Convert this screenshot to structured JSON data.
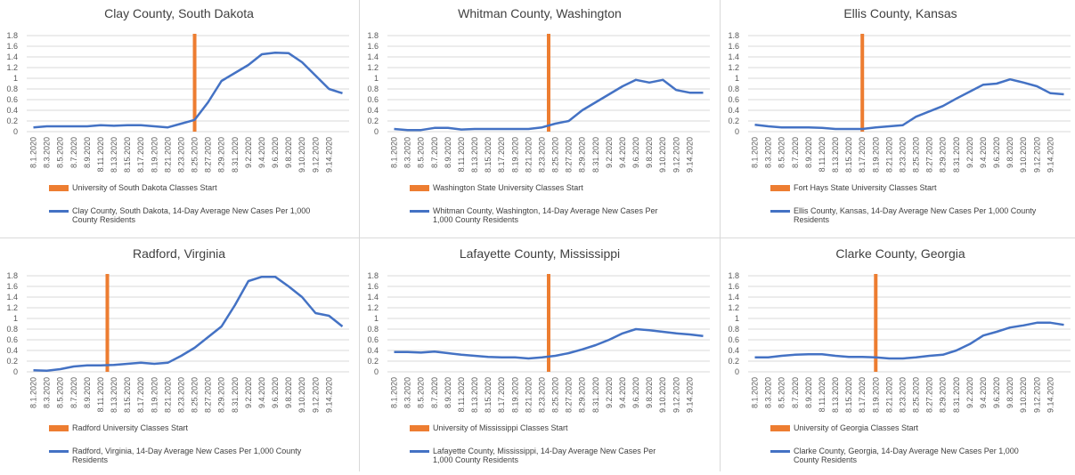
{
  "chart_data": [
    {
      "type": "line",
      "title": "Clay County, South Dakota",
      "categories": [
        "8.1.2020",
        "8.3.2020",
        "8.5.2020",
        "8.7.2020",
        "8.9.2020",
        "8.11.2020",
        "8.13.2020",
        "8.15.2020",
        "8.17.2020",
        "8.19.2020",
        "8.21.2020",
        "8.23.2020",
        "8.25.2020",
        "8.27.2020",
        "8.29.2020",
        "8.31.2020",
        "9.2.2020",
        "9.4.2020",
        "9.6.2020",
        "9.8.2020",
        "9.10.2020",
        "9.12.2020",
        "9.14.2020",
        null
      ],
      "series": [
        {
          "name": "Clay County, South Dakota, 14-Day Average New Cases Per 1,000 County Residents",
          "color": "#4472c4",
          "values": [
            0.08,
            0.1,
            0.1,
            0.1,
            0.1,
            0.12,
            0.11,
            0.12,
            0.12,
            0.1,
            0.08,
            0.15,
            0.22,
            0.55,
            0.95,
            1.1,
            1.25,
            1.45,
            1.48,
            1.47,
            1.3,
            1.05,
            0.8,
            0.72
          ]
        }
      ],
      "event": {
        "name": "University of South Dakota Classes Start",
        "color": "#ed7d31",
        "x": 12
      },
      "ylim": [
        0,
        1.8
      ],
      "yticks": [
        0,
        0.2,
        0.4,
        0.6,
        0.8,
        1,
        1.2,
        1.4,
        1.6,
        1.8
      ],
      "grid": true
    },
    {
      "type": "line",
      "title": "Whitman County, Washington",
      "categories": [
        "8.1.2020",
        "8.3.2020",
        "8.5.2020",
        "8.7.2020",
        "8.9.2020",
        "8.11.2020",
        "8.13.2020",
        "8.15.2020",
        "8.17.2020",
        "8.19.2020",
        "8.21.2020",
        "8.23.2020",
        "8.25.2020",
        "8.27.2020",
        "8.29.2020",
        "8.31.2020",
        "9.2.2020",
        "9.4.2020",
        "9.6.2020",
        "9.8.2020",
        "9.10.2020",
        "9.12.2020",
        "9.14.2020",
        null
      ],
      "series": [
        {
          "name": "Whitman County, Washington, 14-Day Average New Cases Per 1,000 County Residents",
          "color": "#4472c4",
          "values": [
            0.05,
            0.03,
            0.03,
            0.07,
            0.07,
            0.04,
            0.05,
            0.05,
            0.05,
            0.05,
            0.05,
            0.08,
            0.15,
            0.2,
            0.4,
            0.55,
            0.7,
            0.85,
            0.97,
            0.92,
            0.97,
            0.78,
            0.73,
            0.73
          ]
        }
      ],
      "event": {
        "name": "Washington State University Classes Start",
        "color": "#ed7d31",
        "x": 11.5
      },
      "ylim": [
        0,
        1.8
      ],
      "yticks": [
        0,
        0.2,
        0.4,
        0.6,
        0.8,
        1,
        1.2,
        1.4,
        1.6,
        1.8
      ],
      "grid": true
    },
    {
      "type": "line",
      "title": "Ellis County, Kansas",
      "categories": [
        "8.1.2020",
        "8.3.2020",
        "8.5.2020",
        "8.7.2020",
        "8.9.2020",
        "8.11.2020",
        "8.13.2020",
        "8.15.2020",
        "8.17.2020",
        "8.19.2020",
        "8.21.2020",
        "8.23.2020",
        "8.25.2020",
        "8.27.2020",
        "8.29.2020",
        "8.31.2020",
        "9.2.2020",
        "9.4.2020",
        "9.6.2020",
        "9.8.2020",
        "9.10.2020",
        "9.12.2020",
        "9.14.2020",
        null
      ],
      "series": [
        {
          "name": "Ellis County, Kansas, 14-Day Average New Cases Per 1,000 County Residents",
          "color": "#4472c4",
          "values": [
            0.13,
            0.1,
            0.08,
            0.08,
            0.08,
            0.07,
            0.05,
            0.05,
            0.05,
            0.08,
            0.1,
            0.12,
            0.28,
            0.38,
            0.48,
            0.62,
            0.75,
            0.88,
            0.9,
            0.98,
            0.92,
            0.85,
            0.72,
            0.7
          ]
        }
      ],
      "event": {
        "name": "Fort Hays State University Classes Start",
        "color": "#ed7d31",
        "x": 8
      },
      "ylim": [
        0,
        1.8
      ],
      "yticks": [
        0,
        0.2,
        0.4,
        0.6,
        0.8,
        1,
        1.2,
        1.4,
        1.6,
        1.8
      ],
      "grid": true
    },
    {
      "type": "line",
      "title": "Radford, Virginia",
      "categories": [
        "8.1.2020",
        "8.3.2020",
        "8.5.2020",
        "8.7.2020",
        "8.9.2020",
        "8.11.2020",
        "8.13.2020",
        "8.15.2020",
        "8.17.2020",
        "8.19.2020",
        "8.21.2020",
        "8.23.2020",
        "8.25.2020",
        "8.27.2020",
        "8.29.2020",
        "8.31.2020",
        "9.2.2020",
        "9.4.2020",
        "9.6.2020",
        "9.8.2020",
        "9.10.2020",
        "9.12.2020",
        "9.14.2020",
        null
      ],
      "series": [
        {
          "name": "Radford, Virginia, 14-Day Average New Cases Per 1,000 County Residents",
          "color": "#4472c4",
          "values": [
            0.03,
            0.02,
            0.05,
            0.1,
            0.12,
            0.12,
            0.13,
            0.15,
            0.17,
            0.15,
            0.17,
            0.3,
            0.45,
            0.65,
            0.85,
            1.25,
            1.7,
            1.78,
            1.78,
            1.6,
            1.4,
            1.1,
            1.05,
            0.85
          ]
        }
      ],
      "event": {
        "name": "Radford University Classes Start",
        "color": "#ed7d31",
        "x": 5.5
      },
      "ylim": [
        0,
        1.8
      ],
      "yticks": [
        0,
        0.2,
        0.4,
        0.6,
        0.8,
        1,
        1.2,
        1.4,
        1.6,
        1.8
      ],
      "grid": true
    },
    {
      "type": "line",
      "title": "Lafayette County, Mississippi",
      "categories": [
        "8.1.2020",
        "8.3.2020",
        "8.5.2020",
        "8.7.2020",
        "8.9.2020",
        "8.11.2020",
        "8.13.2020",
        "8.15.2020",
        "8.17.2020",
        "8.19.2020",
        "8.21.2020",
        "8.23.2020",
        "8.25.2020",
        "8.27.2020",
        "8.29.2020",
        "8.31.2020",
        "9.2.2020",
        "9.4.2020",
        "9.6.2020",
        "9.8.2020",
        "9.10.2020",
        "9.12.2020",
        "9.14.2020",
        null
      ],
      "series": [
        {
          "name": "Lafayette County, Mississippi, 14-Day Average New Cases Per 1,000 County Residents",
          "color": "#4472c4",
          "values": [
            0.37,
            0.37,
            0.36,
            0.38,
            0.35,
            0.32,
            0.3,
            0.28,
            0.27,
            0.27,
            0.25,
            0.27,
            0.3,
            0.35,
            0.42,
            0.5,
            0.6,
            0.72,
            0.8,
            0.78,
            0.75,
            0.72,
            0.7,
            0.67
          ]
        }
      ],
      "event": {
        "name": "University of Mississippi Classes Start",
        "color": "#ed7d31",
        "x": 11.5
      },
      "ylim": [
        0,
        1.8
      ],
      "yticks": [
        0,
        0.2,
        0.4,
        0.6,
        0.8,
        1,
        1.2,
        1.4,
        1.6,
        1.8
      ],
      "grid": true
    },
    {
      "type": "line",
      "title": "Clarke County, Georgia",
      "categories": [
        "8.1.2020",
        "8.3.2020",
        "8.5.2020",
        "8.7.2020",
        "8.9.2020",
        "8.11.2020",
        "8.13.2020",
        "8.15.2020",
        "8.17.2020",
        "8.19.2020",
        "8.21.2020",
        "8.23.2020",
        "8.25.2020",
        "8.27.2020",
        "8.29.2020",
        "8.31.2020",
        "9.2.2020",
        "9.4.2020",
        "9.6.2020",
        "9.8.2020",
        "9.10.2020",
        "9.12.2020",
        "9.14.2020",
        null
      ],
      "series": [
        {
          "name": "Clarke County, Georgia, 14-Day Average New Cases Per 1,000 County Residents",
          "color": "#4472c4",
          "values": [
            0.27,
            0.27,
            0.3,
            0.32,
            0.33,
            0.33,
            0.3,
            0.28,
            0.28,
            0.27,
            0.25,
            0.25,
            0.27,
            0.3,
            0.32,
            0.4,
            0.52,
            0.68,
            0.75,
            0.83,
            0.87,
            0.92,
            0.92,
            0.88
          ]
        }
      ],
      "event": {
        "name": "University of Georgia Classes Start",
        "color": "#ed7d31",
        "x": 9
      },
      "ylim": [
        0,
        1.8
      ],
      "yticks": [
        0,
        0.2,
        0.4,
        0.6,
        0.8,
        1,
        1.2,
        1.4,
        1.6,
        1.8
      ],
      "grid": true
    }
  ]
}
